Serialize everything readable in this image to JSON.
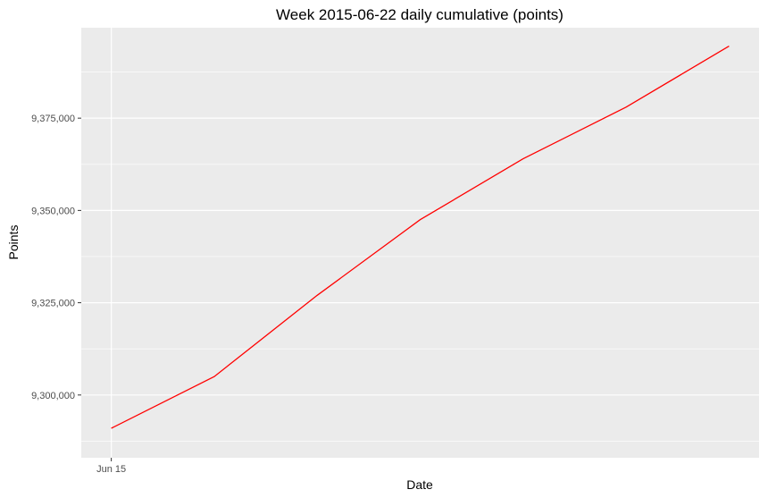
{
  "chart_data": {
    "type": "line",
    "title": "Week 2015-06-22 daily cumulative (points)",
    "xlabel": "Date",
    "ylabel": "Points",
    "x_tick_labels": [
      "Jun 15"
    ],
    "y_ticks": [
      {
        "value": 9300000,
        "label": "9,300,000"
      },
      {
        "value": 9325000,
        "label": "9,325,000"
      },
      {
        "value": 9350000,
        "label": "9,350,000"
      },
      {
        "value": 9375000,
        "label": "9,375,000"
      }
    ],
    "series": [
      {
        "x": [
          "2015-06-15",
          "2015-06-16",
          "2015-06-17",
          "2015-06-18",
          "2015-06-19",
          "2015-06-20",
          "2015-06-21"
        ],
        "y": [
          9291000,
          9305000,
          9327000,
          9347500,
          9364000,
          9378000,
          9394500
        ]
      }
    ],
    "xlim": [
      "2015-06-14T17:00",
      "2015-06-21T07:00"
    ],
    "ylim": [
      9283000,
      9399500
    ],
    "grid": true,
    "legend": "none",
    "colors": {
      "line": "#ff0000",
      "panel_background": "#ebebeb",
      "grid": "#ffffff",
      "page_background": "#ffffff"
    }
  }
}
